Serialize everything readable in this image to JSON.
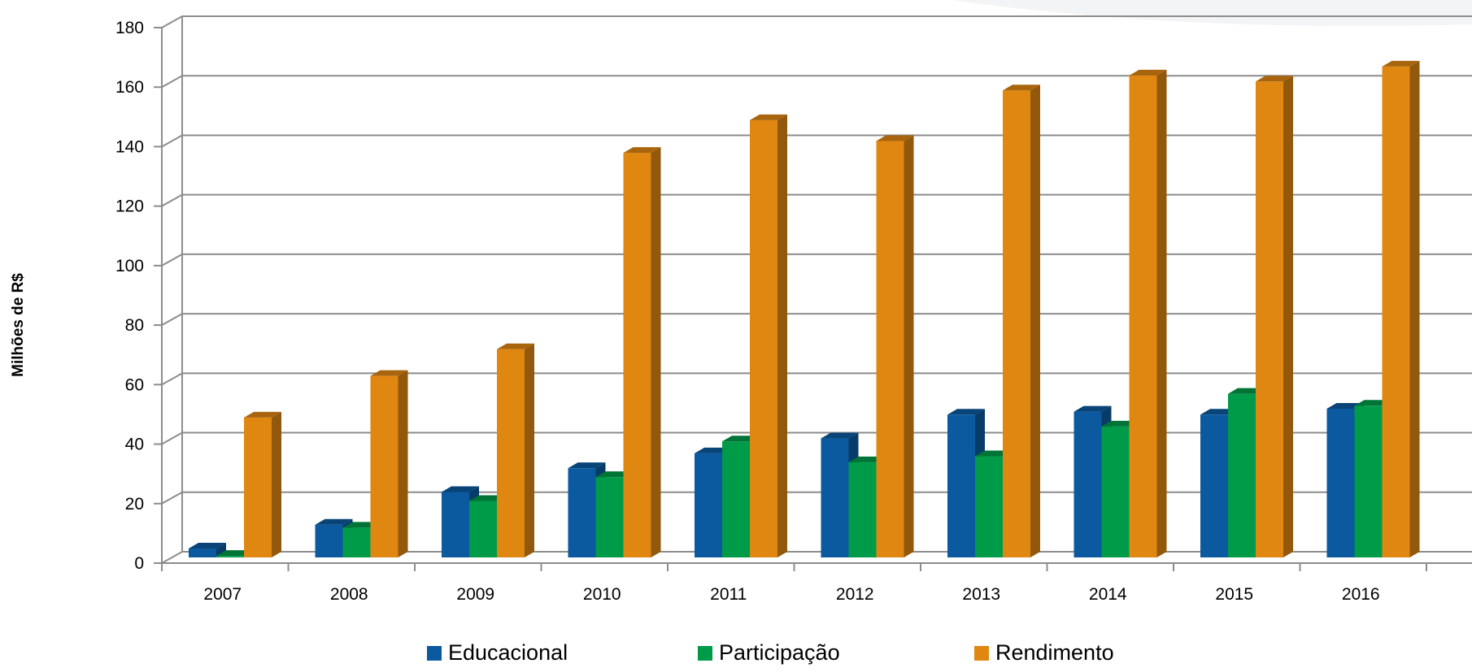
{
  "chart_data": {
    "type": "bar",
    "ylabel": "Milhões de R$",
    "ylim": [
      0,
      180
    ],
    "yticks": [
      0,
      20,
      40,
      60,
      80,
      100,
      120,
      140,
      160,
      180
    ],
    "categories": [
      "2007",
      "2008",
      "2009",
      "2010",
      "2011",
      "2012",
      "2013",
      "2014",
      "2015",
      "2016"
    ],
    "series": [
      {
        "name": "Educacional",
        "color": "#0B5AA0",
        "values": [
          3,
          11,
          22,
          30,
          35,
          40,
          48,
          49,
          48,
          50
        ]
      },
      {
        "name": "Participação",
        "color": "#009B48",
        "values": [
          0.5,
          10,
          19,
          27,
          39,
          32,
          34,
          44,
          55,
          51
        ]
      },
      {
        "name": "Rendimento",
        "color": "#E08712",
        "values": [
          47,
          61,
          70,
          136,
          147,
          140,
          157,
          162,
          160,
          165
        ]
      }
    ],
    "grid": true,
    "legend_position": "bottom"
  }
}
